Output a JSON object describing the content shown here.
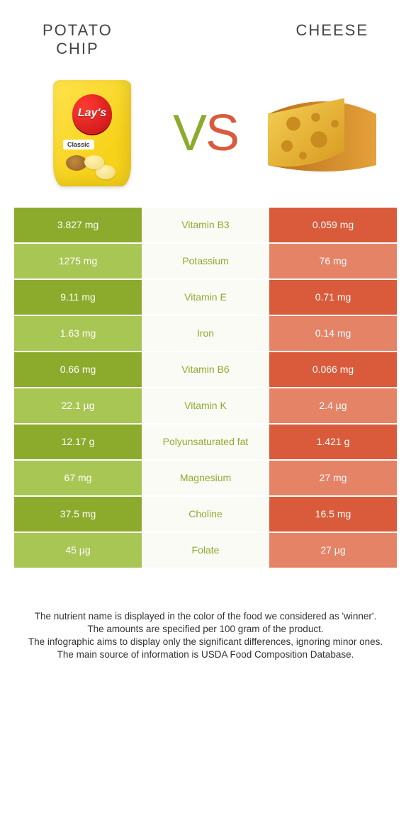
{
  "header": {
    "left_label": "POTATO\nCHIP",
    "right_label": "CHEESE",
    "vs_v": "V",
    "vs_s": "S"
  },
  "chip_bag": {
    "brand": "Lay's",
    "variant": "Classic"
  },
  "palette": {
    "left_heavy": "#8cab2d",
    "left_light": "#a8c654",
    "mid_bg": "#fbfbf6",
    "mid_text_left": "#8cab2d",
    "mid_text_right": "#d95b3b",
    "right_heavy": "#d95b3b",
    "right_light": "#e58367",
    "white": "#ffffff"
  },
  "rows": [
    {
      "nutrient": "Vitamin B3",
      "left": "3.827 mg",
      "right": "0.059 mg",
      "winner": "left"
    },
    {
      "nutrient": "Potassium",
      "left": "1275 mg",
      "right": "76 mg",
      "winner": "left"
    },
    {
      "nutrient": "Vitamin E",
      "left": "9.11 mg",
      "right": "0.71 mg",
      "winner": "left"
    },
    {
      "nutrient": "Iron",
      "left": "1.63 mg",
      "right": "0.14 mg",
      "winner": "left"
    },
    {
      "nutrient": "Vitamin B6",
      "left": "0.66 mg",
      "right": "0.066 mg",
      "winner": "left"
    },
    {
      "nutrient": "Vitamin K",
      "left": "22.1 µg",
      "right": "2.4 µg",
      "winner": "left"
    },
    {
      "nutrient": "Polyunsaturated fat",
      "left": "12.17 g",
      "right": "1.421 g",
      "winner": "left"
    },
    {
      "nutrient": "Magnesium",
      "left": "67 mg",
      "right": "27 mg",
      "winner": "left"
    },
    {
      "nutrient": "Choline",
      "left": "37.5 mg",
      "right": "16.5 mg",
      "winner": "left"
    },
    {
      "nutrient": "Folate",
      "left": "45 µg",
      "right": "27 µg",
      "winner": "left"
    }
  ],
  "footer": {
    "line1": "The nutrient name is displayed in the color of the food we considered as 'winner'.",
    "line2": "The amounts are specified per 100 gram of the product.",
    "line3": "The infographic aims to display only the significant differences, ignoring minor ones.",
    "line4": "The main source of information is USDA Food Composition Database."
  }
}
